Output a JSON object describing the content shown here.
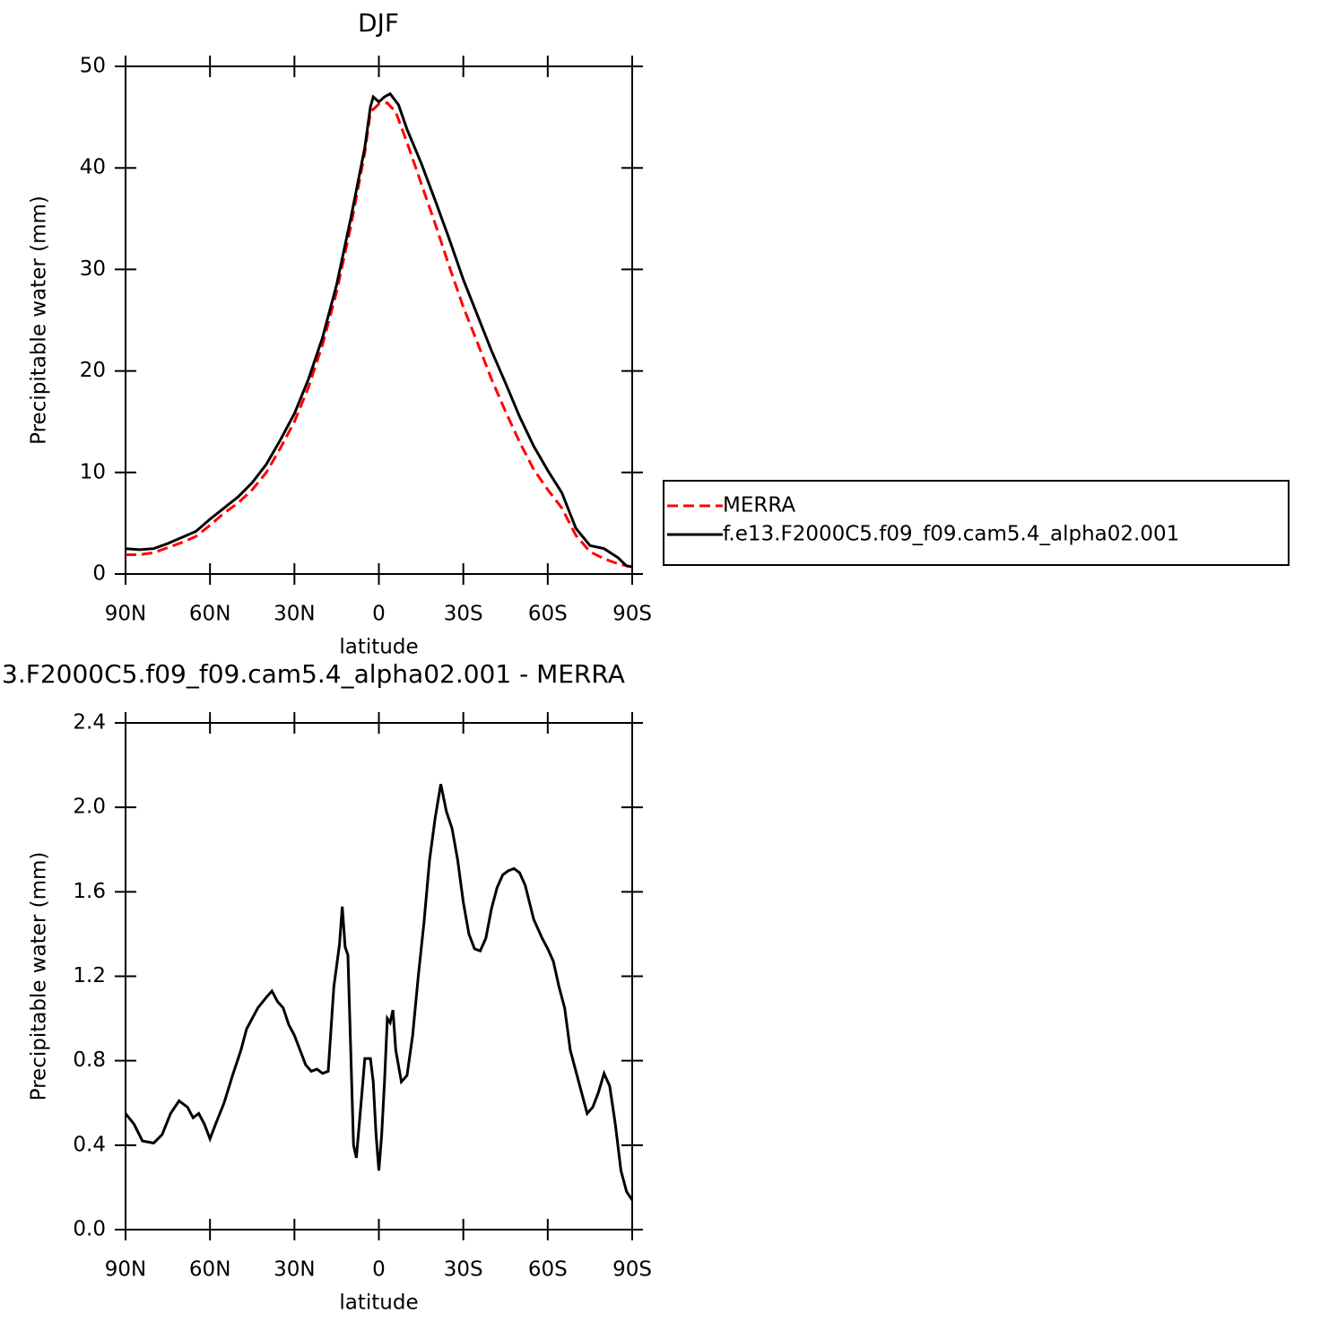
{
  "chart_data": [
    {
      "type": "line",
      "title": "DJF",
      "xlabel": "latitude",
      "ylabel": "Precipitable water (mm)",
      "xlim": [
        90,
        -90
      ],
      "xticks": [
        {
          "value": 90,
          "label": "90N"
        },
        {
          "value": 60,
          "label": "60N"
        },
        {
          "value": 30,
          "label": "30N"
        },
        0,
        {
          "value": -30,
          "label": "30S"
        },
        {
          "value": -60,
          "label": "60S"
        },
        {
          "value": -90,
          "label": "90S"
        }
      ],
      "ylim": [
        0,
        50
      ],
      "yticks": [
        0,
        10,
        20,
        30,
        40,
        50
      ],
      "legend": "right",
      "series": [
        {
          "name": "MERRA",
          "color": "#ff0000",
          "line_style": "dashed",
          "x": [
            90,
            85,
            80,
            75,
            70,
            65,
            60,
            55,
            50,
            45,
            40,
            35,
            30,
            25,
            20,
            15,
            10,
            5,
            3,
            0,
            -3,
            -6,
            -10,
            -15,
            -20,
            -25,
            -30,
            -35,
            -40,
            -45,
            -50,
            -55,
            -60,
            -65,
            -70,
            -75,
            -80,
            -85,
            -90
          ],
          "values": [
            1.9,
            1.9,
            2.1,
            2.6,
            3.1,
            3.7,
            4.8,
            6.0,
            7.0,
            8.3,
            10.0,
            12.4,
            15.0,
            18.4,
            22.6,
            27.8,
            34.2,
            41.5,
            45.5,
            46.3,
            46.4,
            45.5,
            42.5,
            38.5,
            34.5,
            30.3,
            26.3,
            22.8,
            19.2,
            16,
            13,
            10.3,
            8.3,
            6.5,
            3.8,
            2.2,
            1.5,
            1.0,
            0.7
          ]
        },
        {
          "name": "f.e13.F2000C5.f09_f09.cam5.4_alpha02.001",
          "color": "#000000",
          "line_style": "solid",
          "x": [
            90,
            85,
            80,
            75,
            70,
            65,
            60,
            55,
            50,
            45,
            40,
            35,
            30,
            25,
            20,
            15,
            10,
            5,
            3,
            2,
            0,
            -2,
            -4,
            -7,
            -10,
            -15,
            -20,
            -25,
            -30,
            -35,
            -40,
            -45,
            -50,
            -55,
            -60,
            -65,
            -70,
            -75,
            -80,
            -85,
            -88,
            -90
          ],
          "values": [
            2.5,
            2.4,
            2.5,
            3.0,
            3.6,
            4.2,
            5.4,
            6.5,
            7.6,
            9.0,
            10.8,
            13.2,
            15.8,
            19.2,
            23.3,
            28.5,
            35,
            42,
            46,
            47,
            46.5,
            47,
            47.3,
            46.2,
            43.8,
            40.5,
            36.8,
            33,
            29,
            25.5,
            22,
            18.8,
            15.5,
            12.6,
            10.2,
            8,
            4.5,
            2.8,
            2.5,
            1.6,
            0.8,
            0.7
          ]
        }
      ]
    },
    {
      "type": "line",
      "title": "3.F2000C5.f09_f09.cam5.4_alpha02.001 - MERRA",
      "xlabel": "latitude",
      "ylabel": "Precipitable water (mm)",
      "xlim": [
        90,
        -90
      ],
      "xticks": [
        {
          "value": 90,
          "label": "90N"
        },
        {
          "value": 60,
          "label": "60N"
        },
        {
          "value": 30,
          "label": "30N"
        },
        0,
        {
          "value": -30,
          "label": "30S"
        },
        {
          "value": -60,
          "label": "60S"
        },
        {
          "value": -90,
          "label": "90S"
        }
      ],
      "ylim": [
        0,
        2.4
      ],
      "yticks": [
        {
          "value": 0,
          "label": "0.0"
        },
        0.4,
        0.8,
        1.2,
        1.6,
        {
          "value": 2,
          "label": "2.0"
        },
        2.4
      ],
      "series": [
        {
          "color": "#000000",
          "line_style": "solid",
          "x": [
            90,
            87,
            84,
            80,
            77,
            74,
            71,
            68,
            66,
            64,
            62,
            60,
            58,
            55,
            52,
            49,
            47,
            45,
            43,
            40,
            38,
            36,
            34,
            32,
            30,
            28,
            26,
            24,
            22,
            20,
            18,
            17,
            16,
            14,
            13,
            12,
            11,
            10,
            9,
            8,
            6,
            5,
            3,
            2,
            1,
            0,
            -1,
            -2,
            -3,
            -4,
            -5,
            -6,
            -8,
            -10,
            -12,
            -14,
            -16,
            -18,
            -20,
            -22,
            -24,
            -26,
            -28,
            -30,
            -32,
            -34,
            -36,
            -38,
            -40,
            -42,
            -44,
            -46,
            -48,
            -50,
            -52,
            -55,
            -58,
            -60,
            -62,
            -64,
            -66,
            -68,
            -70,
            -72,
            -74,
            -76,
            -78,
            -80,
            -82,
            -84,
            -86,
            -88,
            -90
          ],
          "values": [
            0.55,
            0.5,
            0.42,
            0.41,
            0.45,
            0.55,
            0.61,
            0.58,
            0.53,
            0.55,
            0.5,
            0.43,
            0.5,
            0.6,
            0.73,
            0.85,
            0.95,
            1.0,
            1.05,
            1.1,
            1.13,
            1.08,
            1.05,
            0.97,
            0.92,
            0.85,
            0.78,
            0.75,
            0.76,
            0.74,
            0.75,
            0.95,
            1.15,
            1.35,
            1.53,
            1.34,
            1.3,
            0.85,
            0.4,
            0.34,
            0.65,
            0.81,
            0.81,
            0.7,
            0.45,
            0.28,
            0.45,
            0.7,
            1.0,
            0.98,
            1.04,
            0.85,
            0.7,
            0.73,
            0.92,
            1.2,
            1.45,
            1.75,
            1.95,
            2.11,
            1.98,
            1.9,
            1.75,
            1.55,
            1.4,
            1.33,
            1.32,
            1.38,
            1.52,
            1.62,
            1.68,
            1.7,
            1.71,
            1.69,
            1.63,
            1.47,
            1.38,
            1.33,
            1.27,
            1.15,
            1.05,
            0.85,
            0.75,
            0.65,
            0.55,
            0.58,
            0.65,
            0.74,
            0.68,
            0.5,
            0.28,
            0.18,
            0.14
          ]
        }
      ]
    }
  ]
}
